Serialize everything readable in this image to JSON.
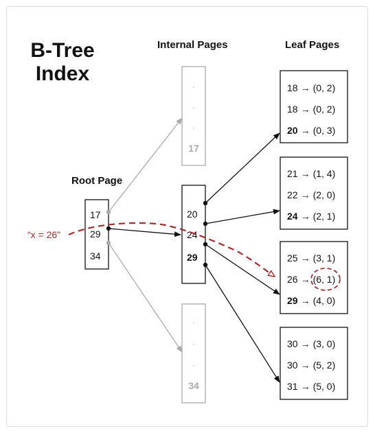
{
  "title_lines": [
    "B-Tree",
    "Index"
  ],
  "labels": {
    "internal_pages": "Internal Pages",
    "leaf_pages": "Leaf Pages",
    "root_page": "Root Page",
    "query": "“x = 26”"
  },
  "root": {
    "keys": [
      "17",
      "29",
      "34"
    ]
  },
  "internal_pages": [
    {
      "keys": [
        "·",
        "·",
        "·",
        "17"
      ],
      "faded": true
    },
    {
      "keys": [
        "20",
        "24",
        "29"
      ],
      "faded": false
    },
    {
      "keys": [
        "·",
        "·",
        "·",
        "34"
      ],
      "faded": true
    }
  ],
  "leaf_pages": [
    {
      "entries": [
        {
          "key": "18",
          "value": "(0, 2)"
        },
        {
          "key": "18",
          "value": "(0, 2)"
        },
        {
          "key": "20",
          "value": "(0, 3)",
          "bold": true
        }
      ]
    },
    {
      "entries": [
        {
          "key": "21",
          "value": "(1, 4)"
        },
        {
          "key": "22",
          "value": "(2, 0)"
        },
        {
          "key": "24",
          "value": "(2, 1)",
          "bold": true
        }
      ]
    },
    {
      "entries": [
        {
          "key": "25",
          "value": "(3, 1)"
        },
        {
          "key": "26",
          "value": "(6, 1)",
          "highlight": true
        },
        {
          "key": "29",
          "value": "(4, 0)",
          "bold": true
        }
      ]
    },
    {
      "entries": [
        {
          "key": "30",
          "value": "(3, 0)"
        },
        {
          "key": "30",
          "value": "(5, 2)"
        },
        {
          "key": "31",
          "value": "(5, 0)"
        }
      ]
    }
  ],
  "arrow_glyph": "→",
  "colors": {
    "pointer": "#111111",
    "faded": "#aaaaaa",
    "query": "#a52a2a"
  }
}
